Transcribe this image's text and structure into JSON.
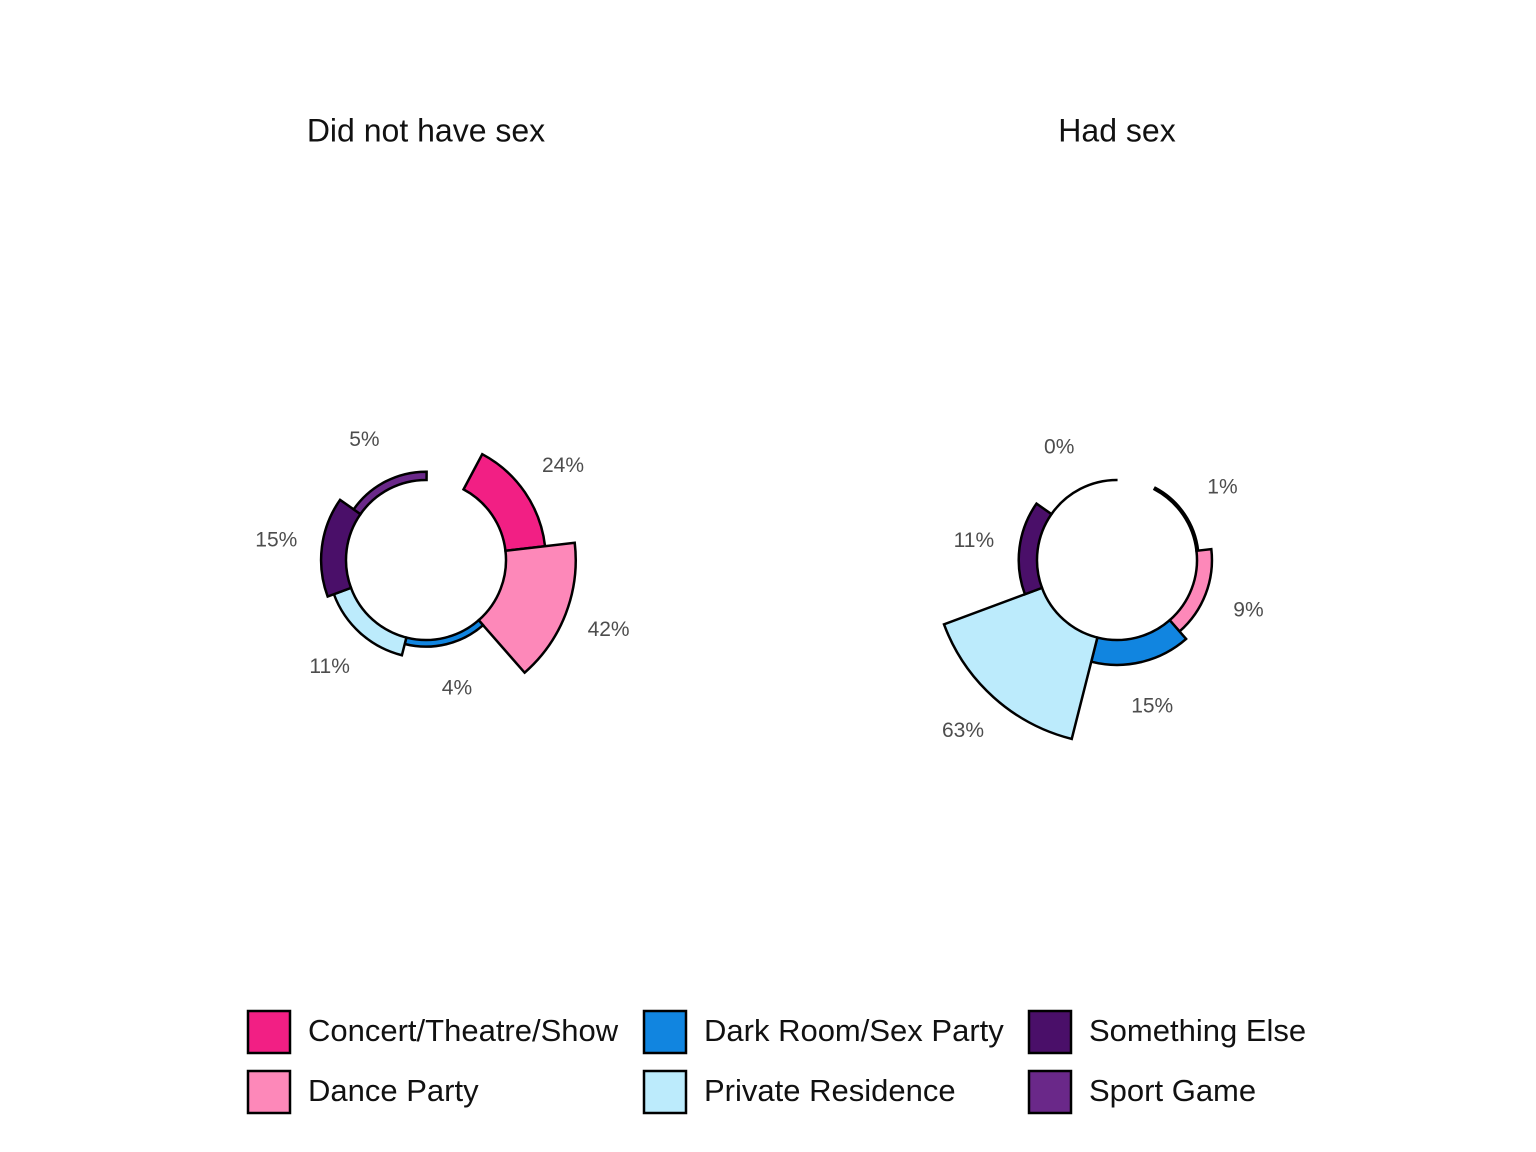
{
  "chart_data": [
    {
      "type": "polar_bar",
      "title": "Did not have sex",
      "categories": [
        "Concert/Theatre/Show",
        "Dance Party",
        "Dark Room/Sex Party",
        "Private Residence",
        "Something Else",
        "Sport Game"
      ],
      "colors": [
        "#f21f84",
        "#fd88b9",
        "#1185e0",
        "#bcebfc",
        "#4a0f69",
        "#6a2889"
      ],
      "values": [
        24,
        42,
        4,
        11,
        15,
        5
      ],
      "value_labels": [
        "24%",
        "42%",
        "4%",
        "11%",
        "15%",
        "5%"
      ]
    },
    {
      "type": "polar_bar",
      "title": "Had sex",
      "categories": [
        "Concert/Theatre/Show",
        "Dance Party",
        "Dark Room/Sex Party",
        "Private Residence",
        "Something Else",
        "Sport Game"
      ],
      "colors": [
        "#f21f84",
        "#fd88b9",
        "#1185e0",
        "#bcebfc",
        "#4a0f69",
        "#6a2889"
      ],
      "values": [
        1,
        9,
        15,
        63,
        11,
        0
      ],
      "value_labels": [
        "1%",
        "9%",
        "15%",
        "63%",
        "11%",
        "0%"
      ]
    }
  ]
}
